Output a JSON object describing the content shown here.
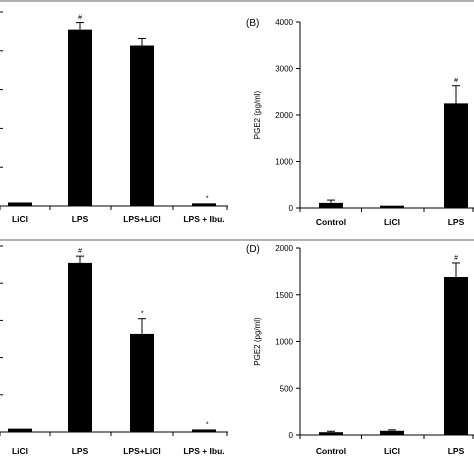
{
  "chart_data": [
    {
      "id": "A",
      "type": "bar",
      "panel_label": "",
      "ylabel": "",
      "categories": [
        "LiCl",
        "LPS",
        "LPS+LiCl",
        "LPS + Ibu."
      ],
      "values": [
        2,
        100,
        91,
        1.5
      ],
      "errors": [
        0,
        4,
        4,
        0
      ],
      "marks": [
        "",
        "#",
        "",
        "*"
      ],
      "ylim": [
        0,
        110
      ],
      "yticks": [],
      "grid": false,
      "legend": "none"
    },
    {
      "id": "B",
      "type": "bar",
      "panel_label": "(B)",
      "ylabel": "PGE2 (pg/ml)",
      "categories": [
        "Control",
        "LiCl",
        "LPS"
      ],
      "values": [
        110,
        50,
        2250
      ],
      "errors": [
        60,
        0,
        380
      ],
      "marks": [
        "",
        "",
        "#"
      ],
      "ylim": [
        0,
        4000
      ],
      "yticks": [
        "0",
        "1000",
        "2000",
        "3000",
        "4000"
      ],
      "grid": false,
      "legend": "none"
    },
    {
      "id": "C",
      "type": "bar",
      "panel_label": "",
      "ylabel": "",
      "categories": [
        "LiCl",
        "LPS",
        "LPS+LiCl",
        "LPS + Ibu."
      ],
      "values": [
        2,
        100,
        58,
        1.5
      ],
      "errors": [
        0,
        4,
        9,
        0
      ],
      "marks": [
        "",
        "#",
        "*",
        "*"
      ],
      "ylim": [
        0,
        110
      ],
      "yticks": [],
      "grid": false,
      "legend": "none"
    },
    {
      "id": "D",
      "type": "bar",
      "panel_label": "(D)",
      "ylabel": "PGE2 (pg/ml)",
      "categories": [
        "Control",
        "LiCl",
        "LPS"
      ],
      "values": [
        30,
        45,
        1690
      ],
      "errors": [
        10,
        10,
        150
      ],
      "marks": [
        "",
        "",
        "#"
      ],
      "ylim": [
        0,
        2000
      ],
      "yticks": [
        "0",
        "500",
        "1000",
        "1500",
        "2000"
      ],
      "grid": false,
      "legend": "none"
    }
  ],
  "colors": {
    "bar": "#000000",
    "axis": "#000000",
    "background": "#ffffff",
    "separator": "#666666"
  }
}
